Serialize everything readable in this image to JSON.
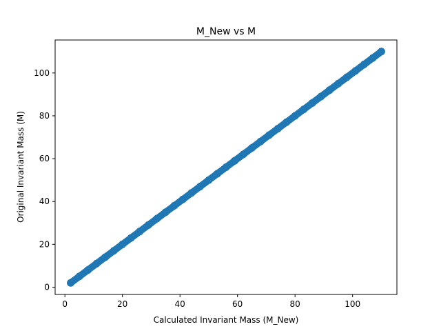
{
  "chart_data": {
    "type": "scatter",
    "title": "M_New vs M",
    "xlabel": "Calculated Invariant Mass (M_New)",
    "ylabel": "Original Invariant Mass (M)",
    "xlim": [
      -3.4,
      115.4
    ],
    "ylim": [
      -3.4,
      115.4
    ],
    "xticks": [
      0,
      20,
      40,
      60,
      80,
      100
    ],
    "yticks": [
      0,
      20,
      40,
      60,
      80,
      100
    ],
    "xtick_labels": [
      "0",
      "20",
      "40",
      "60",
      "80",
      "100"
    ],
    "ytick_labels": [
      "0",
      "20",
      "40",
      "60",
      "80",
      "100"
    ],
    "series": [
      {
        "color": "#1f77b4",
        "x": [
          2,
          5,
          8,
          11,
          14,
          17,
          20,
          23,
          26,
          29,
          32,
          35,
          38,
          41,
          44,
          47,
          50,
          53,
          56,
          59,
          62,
          65,
          68,
          71,
          74,
          77,
          80,
          83,
          86,
          89,
          92,
          95,
          98,
          101,
          104,
          107,
          110
        ],
        "y": [
          2,
          5,
          8,
          11,
          14,
          17,
          20,
          23,
          26,
          29,
          32,
          35,
          38,
          41,
          44,
          47,
          50,
          53,
          56,
          59,
          62,
          65,
          68,
          71,
          74,
          77,
          80,
          83,
          86,
          89,
          92,
          95,
          98,
          101,
          104,
          107,
          110
        ]
      }
    ],
    "grid": false,
    "legend": "none"
  }
}
